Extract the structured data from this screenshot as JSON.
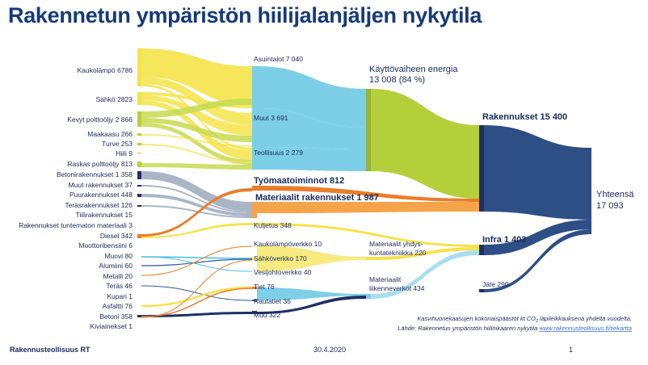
{
  "title": "Rakennetun ympäristön hiilijalanjäljen nykytila",
  "sources": {
    "kaukolampo": "Kaukolämpö 6786",
    "sahko": "Sähkö 2823",
    "kevyt": "Kevyt polttoöljy 2 866",
    "maakaasu": "Maakaasu 266",
    "turve": "Turve 253",
    "hiili": "Hiili 9",
    "raskas": "Raskas polttoöljy 813",
    "betonirak": "Betonirakennukset 1 358",
    "muutrak": "Muut rakennukset 37",
    "puurak": "Puurakennukset 448",
    "terasrak": "Teräsrakennukset 126",
    "tiilirak": "Tiilirakennukset 15",
    "tuntematon": "Rakennukset tuntematon materiaali 3",
    "diesel": "Diesel 342",
    "moottori": "Moottoribensiini 6",
    "muovi": "Muovi 80",
    "alumiini": "Alumiini 60",
    "metalli": "Metalli 20",
    "teras": "Teräs 46",
    "kupari": "Kupari 1",
    "asfaltti": "Asfaltti 76",
    "betoni": "Betoni 358",
    "kiviainekset": "Kiviainekset 1"
  },
  "middle": {
    "asuintalot": "Asuintalot 7 040",
    "muut": "Muut 3 691",
    "teollisuus": "Teollisuus 2 279",
    "tyomaa": "Työmaatoiminnot 812",
    "materiaalit": "Materiaalit rakennukset 1 987",
    "kuljetus": "Kuljetus 348",
    "kaukolampoverkko": "Kaukolämpöverkko 10",
    "sahkoverkko": "Sähköverkko 170",
    "vesijohtoverkko": "Vesijohtoverkko 40",
    "tiet": "Tiet 76",
    "rautatiet": "Rautatiet 36",
    "muu": "Muu 322"
  },
  "aggregates": {
    "kayttovaihe_line1": "Käyttövaiheen energia",
    "kayttovaihe_line2": "13 008 (84 %)",
    "mat_yhdys_line1": "Materiaalit yhdys-",
    "mat_yhdys_line2": "kuntatekniikka 220",
    "mat_liikenne_line1": "Materiaalit",
    "mat_liikenne_line2": "liikenneverkot 434"
  },
  "totals": {
    "rakennukset": "Rakennukset 15 400",
    "infra": "Infra 1 403",
    "jate": "Jäte 290",
    "yhteensa_line1": "Yhteensä",
    "yhteensa_line2": "17 093"
  },
  "notes": {
    "line1_pre": "Kasvihuonekaasujen kokonaispäästöt kt CO",
    "line1_sub": "2",
    "line1_post": " läpileikkauksena yhdeltä vuodelta.",
    "line2_pre": "Lähde: Rakennetun ympäristön hiilinikaaren nykytila ",
    "line2_link": "www.rakennusteollisuus.fi/tiekartta"
  },
  "footer": {
    "org": "Rakennusteollisuus RT",
    "date": "30.4.2020",
    "page": "1"
  },
  "colors": {
    "yellow": "#f4e34a",
    "lightblue": "#7dcfe8",
    "green": "#b5cf3b",
    "grey": "#aab5c6",
    "orange": "#ea7d2a",
    "navy": "#2e4e86",
    "darknavy": "#1f3164",
    "text": "#1a2a5a"
  }
}
